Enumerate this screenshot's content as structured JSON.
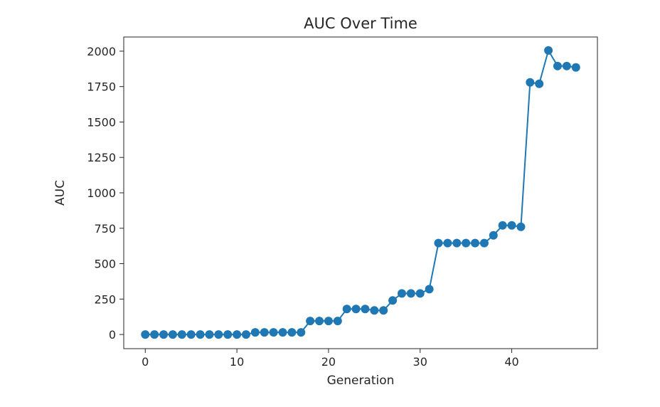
{
  "chart_data": {
    "type": "line",
    "title": "AUC Over Time",
    "xlabel": "Generation",
    "ylabel": "AUC",
    "xlim": [
      -2.35,
      49.35
    ],
    "ylim": [
      -100,
      2100
    ],
    "xticks": [
      0,
      10,
      20,
      30,
      40
    ],
    "yticks": [
      0,
      250,
      500,
      750,
      1000,
      1250,
      1500,
      1750,
      2000
    ],
    "grid": false,
    "series": [
      {
        "color": "#1f77b4",
        "marker": "circle",
        "x": [
          0,
          1,
          2,
          3,
          4,
          5,
          6,
          7,
          8,
          9,
          10,
          11,
          12,
          13,
          14,
          15,
          16,
          17,
          18,
          19,
          20,
          21,
          22,
          23,
          24,
          25,
          26,
          27,
          28,
          29,
          30,
          31,
          32,
          33,
          34,
          35,
          36,
          37,
          38,
          39,
          40,
          41,
          42,
          43,
          44,
          45,
          46,
          47
        ],
        "y": [
          0,
          0,
          0,
          0,
          0,
          0,
          0,
          0,
          0,
          0,
          0,
          0,
          15,
          15,
          15,
          15,
          15,
          15,
          95,
          95,
          95,
          95,
          180,
          180,
          180,
          170,
          170,
          240,
          290,
          290,
          290,
          320,
          645,
          645,
          645,
          645,
          645,
          645,
          700,
          770,
          770,
          760,
          1780,
          1770,
          2005,
          1895,
          1895,
          1885
        ]
      }
    ]
  }
}
